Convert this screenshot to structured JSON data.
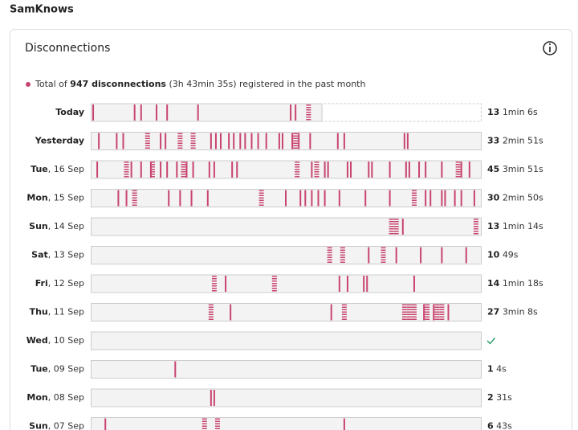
{
  "header": {
    "brand": "SamKnows"
  },
  "card": {
    "title": "Disconnections",
    "summary": {
      "prefix": "Total of",
      "highlight": "947 disconnections",
      "detail": "(3h 43min 35s) registered in the past month"
    },
    "timeline": {
      "xlim": [
        0,
        24
      ],
      "today_progress": 14.2,
      "color": "#c8446e"
    },
    "rows": [
      {
        "weekday": "Today",
        "count": 13,
        "duration": "1min 6s",
        "events": [
          0.15,
          2.7,
          3.1,
          4.05,
          4.7,
          6.6,
          12.3,
          12.6
        ],
        "bursts": [
          13.4
        ]
      },
      {
        "weekday": "Yesterday",
        "count": 33,
        "duration": "2min 51s",
        "events": [
          0.5,
          1.6,
          2.0,
          4.3,
          4.6,
          7.4,
          7.7,
          8.0,
          8.5,
          8.8,
          9.2,
          9.5,
          9.9,
          10.3,
          10.8,
          11.6,
          11.8,
          12.4,
          12.8,
          13.5,
          15.2,
          15.6,
          19.3,
          19.5
        ],
        "bursts": [
          3.5,
          5.5,
          6.3,
          12.6
        ]
      },
      {
        "weekday": "Tue",
        "date": "16 Sep",
        "count": 45,
        "duration": "3min 51s",
        "events": [
          0.4,
          2.5,
          3.1,
          3.7,
          4.3,
          4.7,
          5.3,
          5.9,
          6.3,
          7.3,
          7.6,
          8.7,
          9.0,
          13.6,
          14.4,
          14.6,
          15.8,
          16.0,
          17.1,
          17.3,
          18.4,
          19.4,
          19.6,
          20.2,
          20.6,
          21.6,
          22.8,
          23.3
        ],
        "bursts": [
          2.2,
          3.8,
          5.7,
          12.7,
          13.9,
          22.6
        ]
      },
      {
        "weekday": "Mon",
        "date": "15 Sep",
        "count": 30,
        "duration": "2min 50s",
        "events": [
          1.7,
          2.2,
          4.8,
          5.5,
          6.2,
          7.2,
          12.0,
          12.9,
          13.2,
          13.6,
          14.0,
          14.4,
          15.3,
          16.9,
          18.4,
          20.6,
          20.9,
          21.6,
          21.8,
          22.4,
          22.8,
          23.6
        ],
        "bursts": [
          2.7,
          10.5,
          19.9
        ]
      },
      {
        "weekday": "Sun",
        "date": "14 Sep",
        "count": 13,
        "duration": "1min 14s",
        "events": [
          19.2
        ],
        "bursts": [
          18.5,
          18.8,
          23.7
        ]
      },
      {
        "weekday": "Sat",
        "date": "13 Sep",
        "count": 10,
        "duration": "49s",
        "events": [
          17.1,
          18.8,
          20.3,
          21.6,
          23.1
        ],
        "bursts": [
          14.7,
          15.5,
          18.0
        ]
      },
      {
        "weekday": "Fri",
        "date": "12 Sep",
        "count": 14,
        "duration": "1min 18s",
        "events": [
          8.3,
          15.3,
          15.8,
          16.8,
          17.0,
          19.9
        ],
        "bursts": [
          7.6,
          11.3
        ]
      },
      {
        "weekday": "Thu",
        "date": "11 Sep",
        "count": 27,
        "duration": "3min 8s",
        "events": [
          8.6,
          14.8,
          20.5,
          21.1,
          22.0
        ],
        "bursts": [
          7.4,
          15.6,
          19.3,
          19.6,
          19.9,
          20.7,
          21.3,
          21.6
        ]
      },
      {
        "weekday": "Wed",
        "date": "10 Sep",
        "events": [],
        "bursts": []
      },
      {
        "weekday": "Tue",
        "date": "09 Sep",
        "count": 1,
        "duration": "4s",
        "events": [
          5.2
        ],
        "bursts": []
      },
      {
        "weekday": "Mon",
        "date": "08 Sep",
        "count": 2,
        "duration": "31s",
        "events": [
          7.4,
          7.6
        ],
        "bursts": []
      },
      {
        "weekday": "Sun",
        "date": "07 Sep",
        "count": 6,
        "duration": "43s",
        "events": [
          0.9,
          15.6
        ],
        "bursts": [
          7.0,
          7.8
        ]
      }
    ]
  }
}
